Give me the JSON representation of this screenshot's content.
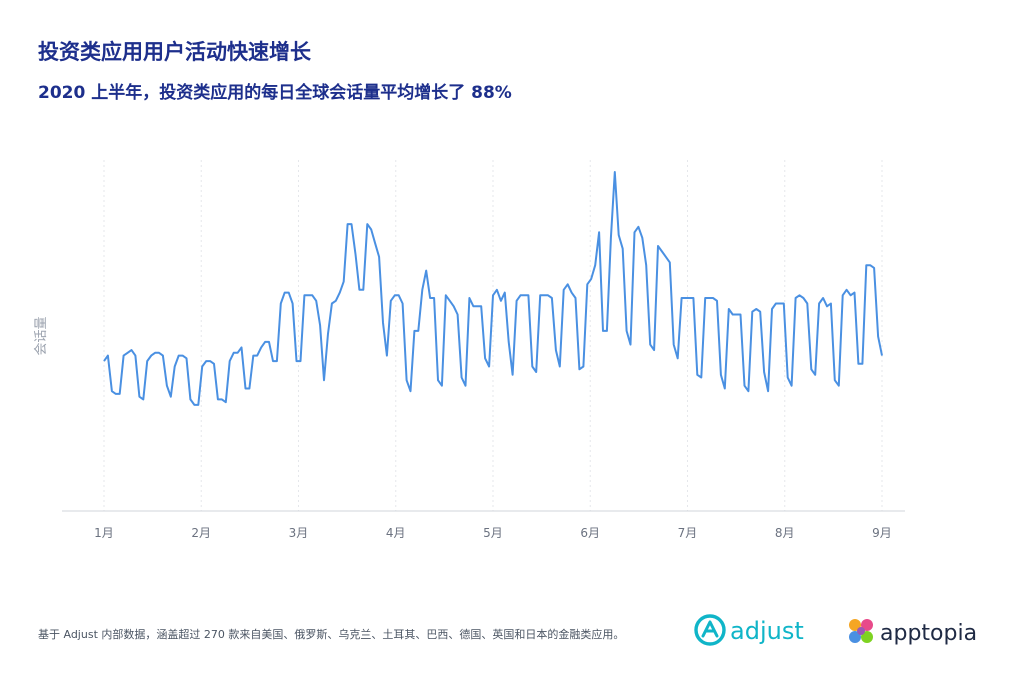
{
  "header": {
    "title": "投资类应用用户活动快速增长",
    "subtitle": "2020 上半年，投资类应用的每日全球会话量平均增长了 88%"
  },
  "footer": {
    "note": "基于 Adjust 内部数据，涵盖超过 270 款来自美国、俄罗斯、乌克兰、土耳其、巴西、德国、英国和日本的金融类应用。",
    "logo_adjust": "adjust",
    "logo_apptopia": "apptopia"
  },
  "colors": {
    "line": "#4a90e2",
    "title": "#1d2f8c",
    "axis_text": "#6b7280",
    "grid": "#e5e7eb"
  },
  "chart_data": {
    "type": "line",
    "title": "投资类应用用户活动快速增长",
    "subtitle": "2020 上半年，投资类应用的每日全球会话量平均增长了 88%",
    "xlabel": "",
    "ylabel": "会话量",
    "x_tick_labels": [
      "1月",
      "2月",
      "3月",
      "4月",
      "5月",
      "6月",
      "7月",
      "8月",
      "9月"
    ],
    "ylim": [
      0,
      100
    ],
    "grid": "vertical",
    "series": [
      {
        "values": [
          31,
          33,
          20,
          19,
          19,
          33,
          34,
          35,
          33,
          18,
          17,
          31,
          33,
          34,
          34,
          33,
          22,
          18,
          29,
          33,
          33,
          32,
          17,
          15,
          15,
          29,
          31,
          31,
          30,
          17,
          17,
          16,
          31,
          34,
          34,
          36,
          21,
          21,
          33,
          33,
          36,
          38,
          38,
          31,
          31,
          52,
          56,
          56,
          52,
          31,
          31,
          55,
          55,
          55,
          53,
          44,
          24,
          41,
          52,
          53,
          56,
          60,
          81,
          81,
          70,
          57,
          57,
          81,
          79,
          74,
          69,
          45,
          33,
          53,
          55,
          55,
          52,
          24,
          20,
          42,
          42,
          57,
          64,
          54,
          54,
          24,
          22,
          55,
          53,
          51,
          48,
          25,
          22,
          54,
          51,
          51,
          51,
          32,
          29,
          55,
          57,
          53,
          56,
          38,
          26,
          53,
          55,
          55,
          55,
          29,
          27,
          55,
          55,
          55,
          54,
          35,
          29,
          57,
          59,
          56,
          54,
          28,
          29,
          59,
          61,
          66,
          78,
          42,
          42,
          76,
          100,
          77,
          72,
          42,
          37,
          78,
          80,
          76,
          66,
          37,
          35,
          73,
          71,
          69,
          67,
          37,
          32,
          54,
          54,
          54,
          54,
          26,
          25,
          54,
          54,
          54,
          53,
          26,
          21,
          50,
          48,
          48,
          48,
          22,
          20,
          49,
          50,
          49,
          27,
          20,
          50,
          52,
          52,
          52,
          25,
          22,
          54,
          55,
          54,
          52,
          28,
          26,
          52,
          54,
          51,
          52,
          24,
          22,
          55,
          57,
          55,
          56,
          30,
          30,
          66,
          66,
          65,
          40,
          33
        ]
      }
    ]
  }
}
